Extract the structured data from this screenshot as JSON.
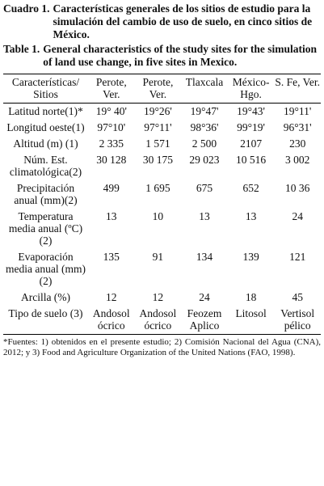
{
  "caption_es": {
    "label": "Cuadro 1.",
    "text": "Características generales de los sitios de estudio para la simulación del cambio de uso de suelo, en cinco sitios de México."
  },
  "caption_en": {
    "label": "Table 1.",
    "text": "General characteristics of the study sites for the simulation of land use change, in five sites in Mexico."
  },
  "table": {
    "header": [
      "Características/ Sitios",
      "Perote, Ver.",
      "Perote, Ver.",
      "Tlaxcala",
      "México-Hgo.",
      "S. Fe, Ver."
    ],
    "rows": [
      [
        "Latitud norte(1)*",
        "19° 40'",
        "19°26'",
        "19°47'",
        "19°43'",
        "19°11'"
      ],
      [
        "Longitud oeste(1)",
        "97°10'",
        "97°11'",
        "98°36'",
        "99°19'",
        "96°31'"
      ],
      [
        "Altitud (m) (1)",
        "2 335",
        "1 571",
        "2 500",
        "2107",
        "230"
      ],
      [
        "Núm. Est. climatológica(2)",
        "30 128",
        "30 175",
        "29 023",
        "10 516",
        "3 002"
      ],
      [
        "Precipitación anual (mm)(2)",
        "499",
        "1 695",
        "675",
        "652",
        "10 36"
      ],
      [
        "Temperatura media anual (ºC)(2)",
        "13",
        "10",
        "13",
        "13",
        "24"
      ],
      [
        "Evaporación media anual (mm)(2)",
        "135",
        "91",
        "134",
        "139",
        "121"
      ],
      [
        "Arcilla (%)",
        "12",
        "12",
        "24",
        "18",
        "45"
      ],
      [
        "Tipo de suelo (3)",
        "Andosol ócrico",
        "Andosol ócrico",
        "Feozem Aplico",
        "Litosol",
        "Vertisol pélico"
      ]
    ]
  },
  "footnote": "*Fuentes: 1) obtenidos en el presente estudio; 2) Comisión Nacional del Agua (CNA), 2012; y 3) Food and Agriculture Organization of the United Nations (FAO, 1998)."
}
